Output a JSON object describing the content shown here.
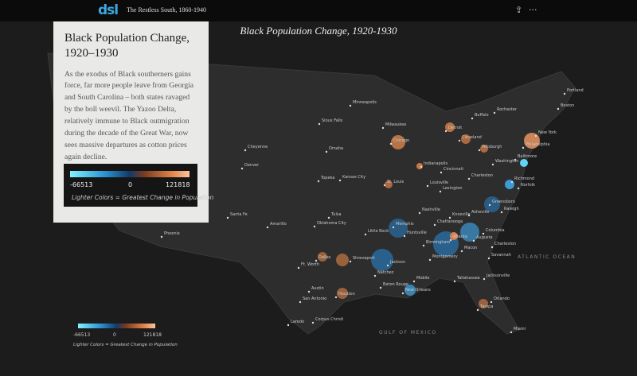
{
  "header": {
    "logo": "dsl",
    "title": "The Restless South, 1860-1940"
  },
  "map": {
    "title": "Black Population Change, 1920-1930",
    "cities": [
      "Portland",
      "Boston",
      "Rochester",
      "Buffalo",
      "Minneapolis",
      "Milwaukee",
      "Sioux Falls",
      "Detroit",
      "Chicago",
      "Cleveland",
      "Pittsburgh",
      "New York",
      "Philadelphia",
      "Cheyenne",
      "Omaha",
      "Baltimore",
      "Washington",
      "Denver",
      "Indianapolis",
      "Cincinnati",
      "Topeka",
      "Kansas City",
      "St. Louis",
      "Louisville",
      "Charleston",
      "Richmond",
      "Norfolk",
      "Lexington",
      "Nashville",
      "Knoxville",
      "Asheville",
      "Greensboro",
      "Raleigh",
      "Santa Fe",
      "Amarillo",
      "Tulsa",
      "Oklahoma City",
      "Chattanooga",
      "Columbia",
      "Little Rock",
      "Memphis",
      "Huntsville",
      "Atlanta",
      "Augusta",
      "Phoenix",
      "Birmingham",
      "Macon",
      "Charleston",
      "Savannah",
      "Montgomery",
      "Dallas",
      "Shreveport",
      "Jackson",
      "Ft. Worth",
      "Natchez",
      "Tallahassee",
      "Jacksonville",
      "Mobile",
      "Baton Rouge",
      "New Orleans",
      "Austin",
      "Houston",
      "San Antonio",
      "Orlando",
      "Tampa",
      "Laredo",
      "Corpus Christi",
      "Miami"
    ],
    "oceans": [
      "ATLANTIC OCEAN",
      "GULF OF MEXICO"
    ],
    "legend": {
      "min": -66513,
      "mid": 0,
      "max": 121818,
      "caption": "Lighter Colors = Greatest Change in Population"
    }
  },
  "panel": {
    "title": "Black Population Change, 1920–1930",
    "body": "As the exodus of Black southerners gains force, far more people leave from Georgia and South Carolina – both states ravaged by the boll weevil. The Yazoo Delta, relatively immune to Black outmigration during the decade of the Great War, now sees massive departures as cotton prices again decline.",
    "legend": {
      "min": -66513,
      "mid": 0,
      "max": 121818,
      "caption": "Lighter Colors = Greatest Change in Population"
    }
  }
}
